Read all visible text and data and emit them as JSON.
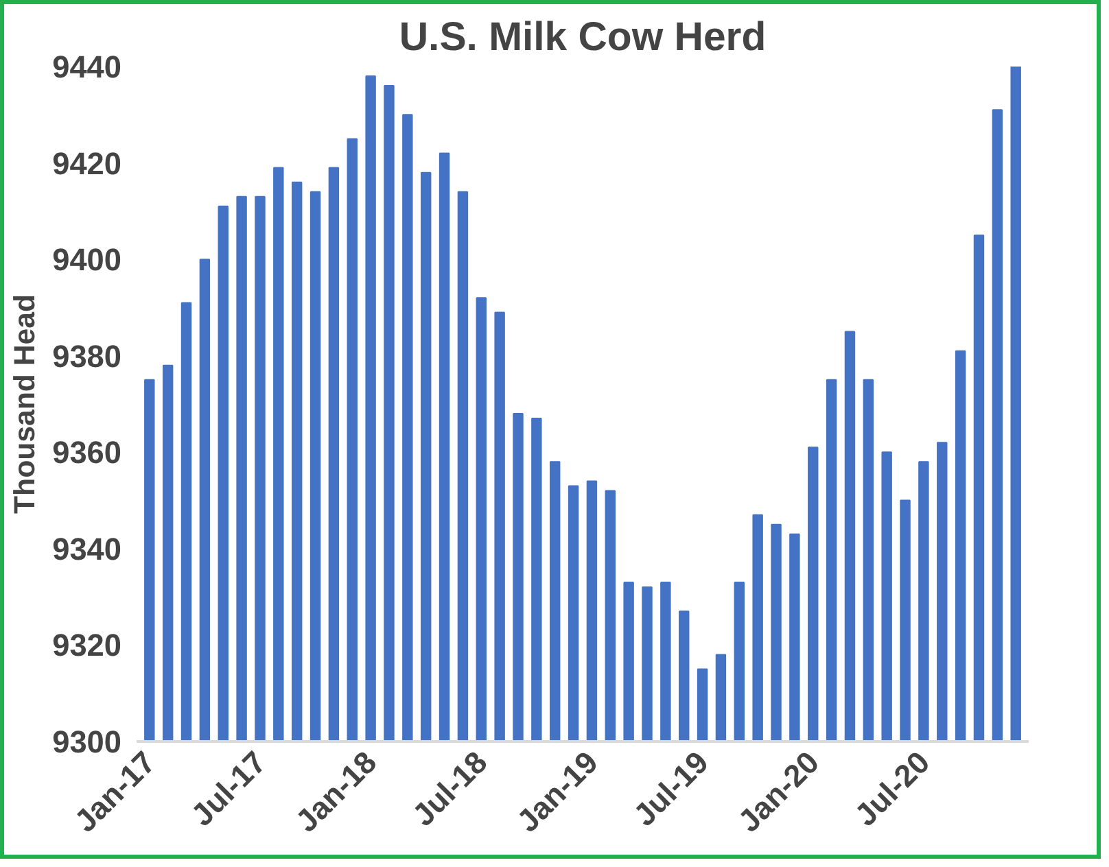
{
  "chart_data": {
    "type": "bar",
    "title": "U.S. Milk Cow Herd",
    "ylabel": "Thousand Head",
    "categories": [
      "Jan-17",
      null,
      null,
      null,
      null,
      null,
      "Jul-17",
      null,
      null,
      null,
      null,
      null,
      "Jan-18",
      null,
      null,
      null,
      null,
      null,
      "Jul-18",
      null,
      null,
      null,
      null,
      null,
      "Jan-19",
      null,
      null,
      null,
      null,
      null,
      "Jul-19",
      null,
      null,
      null,
      null,
      null,
      "Jan-20",
      null,
      null,
      null,
      null,
      null,
      "Jul-20",
      null,
      null,
      null,
      null,
      null
    ],
    "values": [
      9375,
      9378,
      9391,
      9400,
      9411,
      9413,
      9413,
      9419,
      9416,
      9414,
      9419,
      9425,
      9438,
      9436,
      9430,
      9418,
      9422,
      9414,
      9392,
      9389,
      9368,
      9367,
      9358,
      9353,
      9354,
      9352,
      9333,
      9332,
      9333,
      9327,
      9315,
      9318,
      9333,
      9347,
      9345,
      9343,
      9361,
      9375,
      9385,
      9375,
      9360,
      9350,
      9358,
      9362,
      9381,
      9405,
      9431,
      9440
    ],
    "color": "#4472c4",
    "ylim": [
      9300,
      9440
    ],
    "yticks": [
      9300,
      9320,
      9340,
      9360,
      9380,
      9400,
      9420,
      9440
    ],
    "grid": false
  }
}
